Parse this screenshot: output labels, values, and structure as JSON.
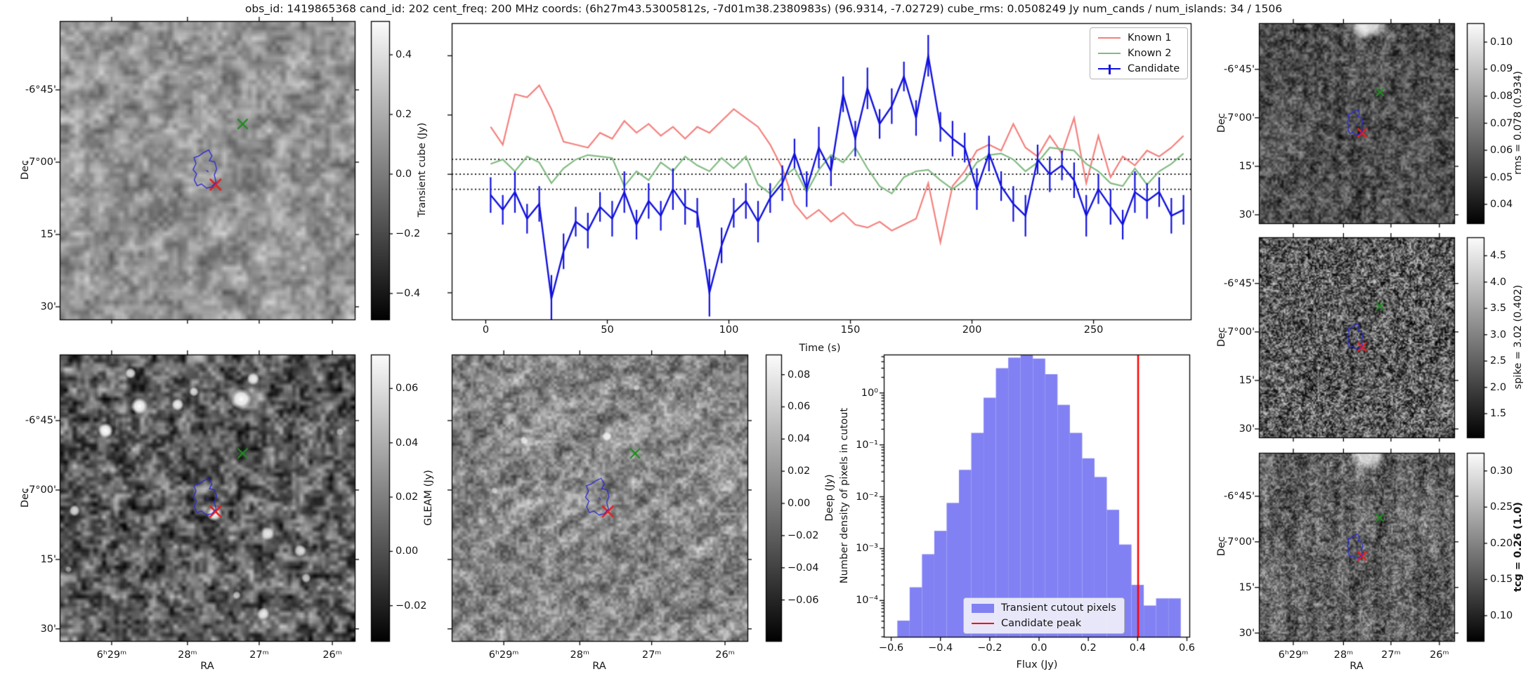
{
  "title": "obs_id: 1419865368 cand_id: 202 cent_freq: 200 MHz coords: (6h27m43.53005812s, -7d01m38.2380983s) (96.9314, -7.02729) cube_rms: 0.0508249 Jy num_cands / num_islands: 34 / 1506",
  "colors": {
    "known1": "#f4807d",
    "known2": "#82bb82",
    "candidate": "#1111dd",
    "hist_bar": "#8181f3",
    "cand_peak": "#ff0000",
    "marker_green": "#1f8c1f",
    "marker_red": "#e32222",
    "contour": "#2a2ad0"
  },
  "axis_labels": {
    "dec": "Dec",
    "ra": "RA",
    "time": "Time (s)",
    "flux": "Flux (Jy)",
    "hist_y": "Number density of pixels in cutout"
  },
  "dec_tick_labels": [
    "-6°45'",
    "-7°00'",
    "15'",
    "30'"
  ],
  "ra_tick_labels": [
    "6ʰ29ᵐ",
    "28ᵐ",
    "27ᵐ",
    "26ᵐ"
  ],
  "time_tick_labels": [
    "0",
    "50",
    "100",
    "150",
    "200",
    "250"
  ],
  "flux_tick_labels": [
    "−0.6",
    "−0.4",
    "−0.2",
    "0.0",
    "0.2",
    "0.4",
    "0.6"
  ],
  "hist_y_tick_labels": [
    "10⁰",
    "10⁻¹",
    "10⁻²",
    "10⁻³",
    "10⁻⁴"
  ],
  "legend_lightcurve": [
    "Known 1",
    "Known 2",
    "Candidate"
  ],
  "legend_hist": [
    "Transient cutout pixels",
    "Candidate peak"
  ],
  "colorbars": {
    "transient": {
      "label": "Transient cube (Jy)",
      "tick_labels": [
        "0.4",
        "0.2",
        "0.0",
        "−0.2",
        "−0.4"
      ],
      "tick_values": [
        0.4,
        0.2,
        0.0,
        -0.2,
        -0.4
      ],
      "vmin": -0.487,
      "vmax": 0.513
    },
    "gleam": {
      "label": "GLEAM (Jy)",
      "tick_labels": [
        "0.06",
        "0.04",
        "0.02",
        "0.00",
        "−0.02"
      ],
      "tick_values": [
        0.06,
        0.04,
        0.02,
        0.0,
        -0.02
      ],
      "vmin": -0.033,
      "vmax": 0.0725
    },
    "deep": {
      "label": "Deep (Jy)",
      "tick_labels": [
        "0.08",
        "0.06",
        "0.04",
        "0.02",
        "0.00",
        "−0.02",
        "−0.04",
        "−0.06"
      ],
      "tick_values": [
        0.08,
        0.06,
        0.04,
        0.02,
        0.0,
        -0.02,
        -0.04,
        -0.06
      ],
      "vmin": -0.0855,
      "vmax": 0.0925
    },
    "rms": {
      "label": "rms = 0.078 (0.934)",
      "tick_labels": [
        "0.10",
        "0.09",
        "0.08",
        "0.07",
        "0.06",
        "0.05",
        "0.04"
      ],
      "tick_values": [
        0.1,
        0.09,
        0.08,
        0.07,
        0.06,
        0.05,
        0.04
      ],
      "vmin": 0.033,
      "vmax": 0.107
    },
    "spike": {
      "label": "spike = 3.02 (0.402)",
      "tick_labels": [
        "4.5",
        "4.0",
        "3.5",
        "3.0",
        "2.5",
        "2.0",
        "1.5"
      ],
      "tick_values": [
        4.5,
        4.0,
        3.5,
        3.0,
        2.5,
        2.0,
        1.5
      ],
      "vmin": 1.05,
      "vmax": 4.85
    },
    "tcg": {
      "label": "tcg = 0.26 (1.0)",
      "tick_labels": [
        "0.30",
        "0.25",
        "0.20",
        "0.15",
        "0.10"
      ],
      "tick_values": [
        0.3,
        0.25,
        0.2,
        0.15,
        0.1
      ],
      "vmin": 0.065,
      "vmax": 0.325,
      "bold": true
    }
  },
  "markers": {
    "known_pos": [
      0.62,
      0.345
    ],
    "candidate_pos": [
      0.528,
      0.548
    ],
    "contour": [
      [
        0.487,
        0.441
      ],
      [
        0.505,
        0.432
      ],
      [
        0.516,
        0.452
      ],
      [
        0.507,
        0.468
      ],
      [
        0.525,
        0.472
      ],
      [
        0.532,
        0.495
      ],
      [
        0.524,
        0.516
      ],
      [
        0.53,
        0.54
      ],
      [
        0.515,
        0.556
      ],
      [
        0.498,
        0.56
      ],
      [
        0.48,
        0.546
      ],
      [
        0.466,
        0.552
      ],
      [
        0.456,
        0.532
      ],
      [
        0.464,
        0.512
      ],
      [
        0.452,
        0.498
      ],
      [
        0.462,
        0.477
      ],
      [
        0.455,
        0.458
      ],
      [
        0.472,
        0.452
      ]
    ]
  },
  "image_sources": {
    "gleam": [
      [
        0.615,
        0.155,
        15,
        1
      ],
      [
        0.655,
        0.085,
        9,
        0.9
      ],
      [
        0.27,
        0.18,
        12,
        1
      ],
      [
        0.4,
        0.175,
        9,
        0.95
      ],
      [
        0.455,
        0.13,
        7,
        0.8
      ],
      [
        0.24,
        0.065,
        8,
        0.85
      ],
      [
        0.155,
        0.265,
        11,
        1
      ],
      [
        0.05,
        0.545,
        8,
        0.75
      ],
      [
        0.525,
        0.555,
        11,
        0.95
      ],
      [
        0.705,
        0.625,
        10,
        0.85
      ],
      [
        0.815,
        0.685,
        9,
        0.8
      ],
      [
        0.835,
        0.78,
        7,
        0.7
      ],
      [
        0.6,
        0.84,
        6,
        0.65
      ],
      [
        0.69,
        0.905,
        9,
        0.8
      ],
      [
        0.03,
        0.75,
        5,
        0.5
      ],
      [
        0.95,
        0.27,
        6,
        0.55
      ]
    ],
    "deep": [
      [
        0.525,
        0.285,
        7,
        0.85
      ],
      [
        0.245,
        0.3,
        6,
        0.7
      ],
      [
        0.145,
        0.475,
        5,
        0.6
      ],
      [
        0.625,
        0.115,
        5,
        0.55
      ],
      [
        0.87,
        0.12,
        4,
        0.5
      ]
    ],
    "rms": [
      [
        0.56,
        -0.02,
        45,
        0.9
      ],
      [
        0.52,
        0.04,
        20,
        0.5
      ]
    ],
    "tcg": [
      [
        0.56,
        0.0,
        40,
        0.8
      ]
    ]
  },
  "chart_data": [
    {
      "type": "line",
      "title": "",
      "xlabel": "Time (s)",
      "ylabel": "",
      "xlim": [
        -14,
        290
      ],
      "ylim": [
        -0.49,
        0.51
      ],
      "x_start": 2,
      "x_step": 5,
      "n_points": 58,
      "x_ticks": [
        0,
        50,
        100,
        150,
        200,
        250
      ],
      "hlines": [
        0.0508,
        0.0,
        -0.0508
      ],
      "legend_position": "upper right",
      "series": [
        {
          "name": "Known 1",
          "color": "#f4807d",
          "values": [
            0.16,
            0.1,
            0.27,
            0.26,
            0.3,
            0.22,
            0.11,
            0.1,
            0.09,
            0.14,
            0.12,
            0.18,
            0.14,
            0.17,
            0.13,
            0.16,
            0.12,
            0.16,
            0.14,
            0.18,
            0.22,
            0.19,
            0.16,
            0.1,
            0.02,
            -0.1,
            -0.15,
            -0.12,
            -0.16,
            -0.13,
            -0.17,
            -0.18,
            -0.16,
            -0.19,
            -0.17,
            -0.15,
            -0.03,
            -0.23,
            -0.04,
            0.01,
            0.08,
            0.1,
            0.08,
            0.17,
            0.09,
            0.06,
            0.13,
            0.07,
            0.19,
            -0.03,
            0.13,
            -0.01,
            0.06,
            0.03,
            0.08,
            0.06,
            0.09,
            0.13
          ]
        },
        {
          "name": "Known 2",
          "color": "#82bb82",
          "values": [
            0.035,
            0.05,
            0.01,
            0.06,
            0.04,
            -0.03,
            0.02,
            0.05,
            0.065,
            0.06,
            0.055,
            -0.04,
            0.01,
            -0.02,
            0.04,
            0.01,
            0.06,
            0.03,
            0.01,
            0.055,
            0.02,
            0.06,
            -0.035,
            -0.065,
            -0.01,
            0.02,
            -0.06,
            0.015,
            0.065,
            0.04,
            0.09,
            0.02,
            -0.04,
            -0.065,
            -0.01,
            0.01,
            0.015,
            -0.02,
            -0.05,
            -0.02,
            0.04,
            0.065,
            0.07,
            0.05,
            0.01,
            0.04,
            0.09,
            0.085,
            0.08,
            0.035,
            0.01,
            -0.03,
            -0.04,
            0.02,
            -0.035,
            0.01,
            0.035,
            0.07
          ]
        },
        {
          "name": "Candidate",
          "color": "#1111dd",
          "values": [
            -0.07,
            -0.12,
            -0.06,
            -0.15,
            -0.1,
            -0.42,
            -0.26,
            -0.16,
            -0.19,
            -0.11,
            -0.15,
            -0.06,
            -0.17,
            -0.09,
            -0.14,
            -0.05,
            -0.11,
            -0.13,
            -0.4,
            -0.24,
            -0.13,
            -0.09,
            -0.16,
            -0.08,
            -0.03,
            0.07,
            -0.05,
            0.09,
            0.01,
            0.27,
            0.12,
            0.29,
            0.17,
            0.23,
            0.33,
            0.19,
            0.4,
            0.16,
            0.12,
            0.09,
            -0.05,
            0.07,
            -0.04,
            -0.1,
            -0.14,
            0.05,
            0.0,
            0.03,
            -0.02,
            -0.14,
            -0.05,
            -0.11,
            -0.17,
            -0.06,
            -0.09,
            -0.06,
            -0.14,
            -0.12
          ],
          "errors": [
            0.06,
            0.05,
            0.07,
            0.05,
            0.06,
            0.08,
            0.06,
            0.05,
            0.06,
            0.05,
            0.06,
            0.07,
            0.05,
            0.06,
            0.05,
            0.07,
            0.06,
            0.05,
            0.08,
            0.06,
            0.05,
            0.06,
            0.07,
            0.05,
            0.06,
            0.05,
            0.06,
            0.07,
            0.05,
            0.06,
            0.06,
            0.07,
            0.05,
            0.06,
            0.05,
            0.06,
            0.07,
            0.05,
            0.06,
            0.05,
            0.07,
            0.06,
            0.05,
            0.06,
            0.07,
            0.05,
            0.06,
            0.05,
            0.06,
            0.07,
            0.05,
            0.06,
            0.05,
            0.07,
            0.06,
            0.05,
            0.06,
            0.05
          ]
        }
      ]
    },
    {
      "type": "bar",
      "title": "",
      "xlabel": "Flux (Jy)",
      "ylabel": "Number density of pixels in cutout",
      "yscale": "log",
      "xlim": [
        -0.63,
        0.61
      ],
      "ylim": [
        2e-05,
        5.5
      ],
      "bin_start": -0.575,
      "bin_width": 0.05,
      "densities": [
        4.1e-05,
        0.00018,
        0.00078,
        0.0022,
        0.0076,
        0.033,
        0.17,
        0.81,
        3.0,
        4.8,
        5.5,
        4.6,
        2.3,
        0.59,
        0.17,
        0.055,
        0.024,
        0.0056,
        0.0012,
        0.0002,
        8e-05,
        0.00011,
        0.00011
      ],
      "candidate_peak": 0.402,
      "bar_color": "#8181f3",
      "line_color": "#ff0000",
      "legend_position": "lower center"
    }
  ]
}
